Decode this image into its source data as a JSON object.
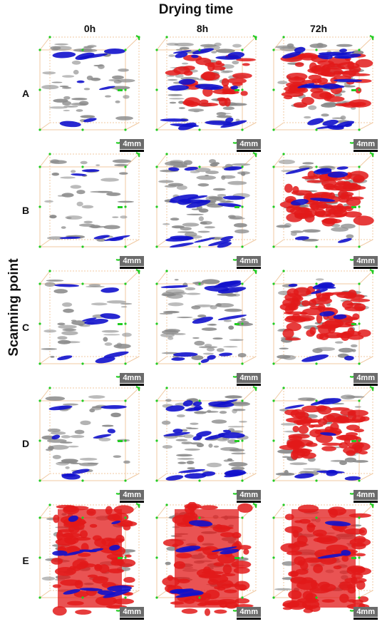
{
  "title": "Drying time",
  "y_axis_label": "Scanning point",
  "columns": [
    "0h",
    "8h",
    "72h"
  ],
  "rows": [
    "A",
    "B",
    "C",
    "D",
    "E"
  ],
  "scale_label": "4mm",
  "colors": {
    "pore_gray": "#8a8a8a",
    "blue_phase": "#1111cc",
    "red_phase": "#e21a1a",
    "box_edge": "#f0c8a0",
    "marker": "#22cc22"
  }
}
